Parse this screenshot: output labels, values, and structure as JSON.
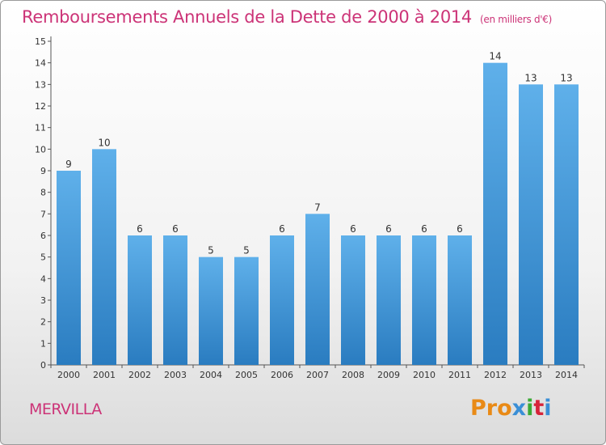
{
  "chart_data": {
    "type": "bar",
    "title": "Remboursements Annuels de la Dette de 2000 à 2014",
    "subtitle": "(en milliers d'€)",
    "categories": [
      "2000",
      "2001",
      "2002",
      "2003",
      "2004",
      "2005",
      "2006",
      "2007",
      "2008",
      "2009",
      "2010",
      "2011",
      "2012",
      "2013",
      "2014"
    ],
    "values": [
      9,
      10,
      6,
      6,
      5,
      5,
      6,
      7,
      6,
      6,
      6,
      6,
      14,
      13,
      13
    ],
    "yticks": [
      "0",
      "1",
      "2",
      "3",
      "4",
      "5",
      "6",
      "7",
      "8",
      "9",
      "10",
      "11",
      "12",
      "13",
      "14",
      "15"
    ],
    "ylim": [
      0,
      15
    ],
    "grid": false,
    "bar_color_top": "#5fb0ea",
    "bar_color_bottom": "#2a7cc0"
  },
  "footer": {
    "commune": "MERVILLA",
    "logo": [
      "Pro",
      "x",
      "i",
      "t",
      "i"
    ]
  }
}
